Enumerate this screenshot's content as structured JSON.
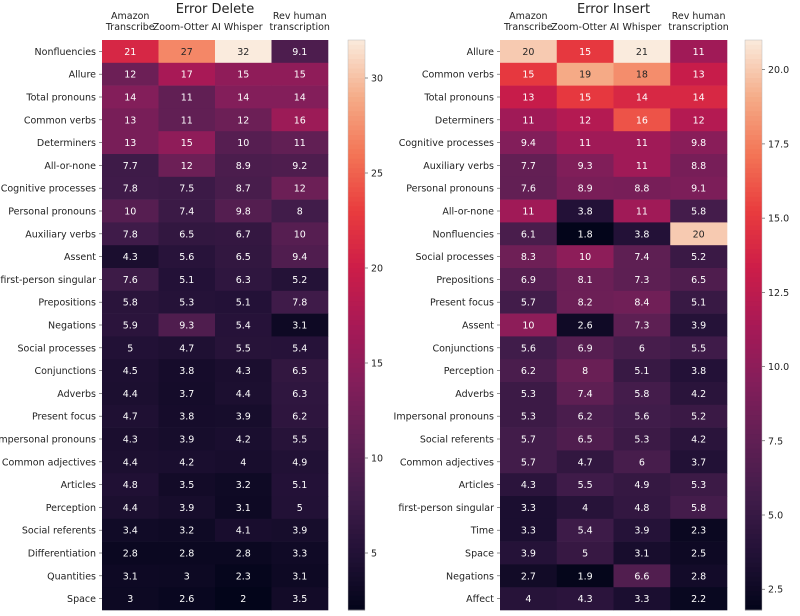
{
  "chart_data": [
    {
      "type": "heatmap",
      "title": "Error Delete",
      "columns": [
        "Amazon\nTranscribe",
        "Zoom-Otter AI",
        "Whisper",
        "Rev human\ntranscription"
      ],
      "rows": [
        "Nonfluencies",
        "Allure",
        "Total pronouns",
        "Common verbs",
        "Determiners",
        "All-or-none",
        "Cognitive processes",
        "Personal pronouns",
        "Auxiliary verbs",
        "Assent",
        "first-person singular",
        "Prepositions",
        "Negations",
        "Social processes",
        "Conjunctions",
        "Adverbs",
        "Present focus",
        "Impersonal pronouns",
        "Common adjectives",
        "Articles",
        "Perception",
        "Social referents",
        "Differentiation",
        "Quantities",
        "Space"
      ],
      "values": [
        [
          21,
          27,
          32,
          9.1
        ],
        [
          12,
          17,
          15,
          15
        ],
        [
          14,
          11,
          14,
          14
        ],
        [
          13,
          11,
          12,
          16
        ],
        [
          13,
          15,
          10,
          11
        ],
        [
          7.7,
          12,
          8.9,
          9.2
        ],
        [
          7.8,
          7.5,
          8.7,
          12
        ],
        [
          10,
          7.4,
          9.8,
          8
        ],
        [
          7.8,
          6.5,
          6.7,
          10
        ],
        [
          4.3,
          5.6,
          6.5,
          9.4
        ],
        [
          7.6,
          5.1,
          6.3,
          5.2
        ],
        [
          5.8,
          5.3,
          5.1,
          7.8
        ],
        [
          5.9,
          9.3,
          5.4,
          3.1
        ],
        [
          5,
          4.7,
          5.5,
          5.4
        ],
        [
          4.5,
          3.8,
          4.3,
          6.5
        ],
        [
          4.4,
          3.7,
          4.4,
          6.3
        ],
        [
          4.7,
          3.8,
          3.9,
          6.2
        ],
        [
          4.3,
          3.9,
          4.2,
          5.5
        ],
        [
          4.4,
          4.2,
          4,
          4.9
        ],
        [
          4.8,
          3.5,
          3.2,
          5.1
        ],
        [
          4.4,
          3.9,
          3.1,
          5
        ],
        [
          3.4,
          3.2,
          4.1,
          3.9
        ],
        [
          2.8,
          2.8,
          2.8,
          3.3
        ],
        [
          3.1,
          3,
          2.3,
          3.1
        ],
        [
          3,
          2.6,
          2,
          3.5
        ]
      ],
      "vmin": 2,
      "vmax": 32,
      "colorbar_ticks": [
        5,
        10,
        15,
        20,
        25,
        30
      ],
      "colorbar_tick_labels": [
        "5",
        "10",
        "15",
        "20",
        "25",
        "30"
      ],
      "colormap": "rocket"
    },
    {
      "type": "heatmap",
      "title": "Error Insert",
      "columns": [
        "Amazon\nTranscribe",
        "Zoom-Otter AI",
        "Whisper",
        "Rev human\ntranscription"
      ],
      "rows": [
        "Allure",
        "Common verbs",
        "Total pronouns",
        "Determiners",
        "Cognitive processes",
        "Auxiliary verbs",
        "Personal pronouns",
        "All-or-none",
        "Nonfluencies",
        "Social processes",
        "Prepositions",
        "Present focus",
        "Assent",
        "Conjunctions",
        "Perception",
        "Adverbs",
        "Impersonal pronouns",
        "Social referents",
        "Common adjectives",
        "Articles",
        "first-person singular",
        "Time",
        "Space",
        "Negations",
        "Affect"
      ],
      "values": [
        [
          20,
          15,
          21,
          11
        ],
        [
          15,
          19,
          18,
          13
        ],
        [
          13,
          15,
          14,
          14
        ],
        [
          11,
          12,
          16,
          12
        ],
        [
          9.4,
          11,
          11,
          9.8
        ],
        [
          7.7,
          9.3,
          11,
          8.8
        ],
        [
          7.6,
          8.9,
          8.8,
          9.1
        ],
        [
          11,
          3.8,
          11,
          5.8
        ],
        [
          6.1,
          1.8,
          3.8,
          20
        ],
        [
          8.3,
          10,
          7.4,
          5.2
        ],
        [
          6.9,
          8.1,
          7.3,
          6.5
        ],
        [
          5.7,
          8.2,
          8.4,
          5.1
        ],
        [
          10,
          2.6,
          7.3,
          3.9
        ],
        [
          5.6,
          6.9,
          6,
          5.5
        ],
        [
          6.2,
          8,
          5.1,
          3.8
        ],
        [
          5.3,
          7.4,
          5.8,
          4.2
        ],
        [
          5.3,
          6.2,
          5.6,
          5.2
        ],
        [
          5.7,
          6.5,
          5.3,
          4.2
        ],
        [
          5.7,
          4.7,
          6,
          3.7
        ],
        [
          4.3,
          5.5,
          4.9,
          5.3
        ],
        [
          3.3,
          4,
          4.8,
          5.8
        ],
        [
          3.3,
          5.4,
          3.9,
          2.3
        ],
        [
          3.9,
          5,
          3.1,
          2.5
        ],
        [
          2.7,
          1.9,
          6.6,
          2.8
        ],
        [
          4,
          4.3,
          3.3,
          2.2
        ]
      ],
      "vmin": 1.8,
      "vmax": 21,
      "colorbar_ticks": [
        2.5,
        5,
        7.5,
        10,
        12.5,
        15,
        17.5,
        20
      ],
      "colorbar_tick_labels": [
        "2.5",
        "5.0",
        "7.5",
        "10.0",
        "12.5",
        "15.0",
        "17.5",
        "20.0"
      ],
      "colormap": "rocket"
    }
  ]
}
